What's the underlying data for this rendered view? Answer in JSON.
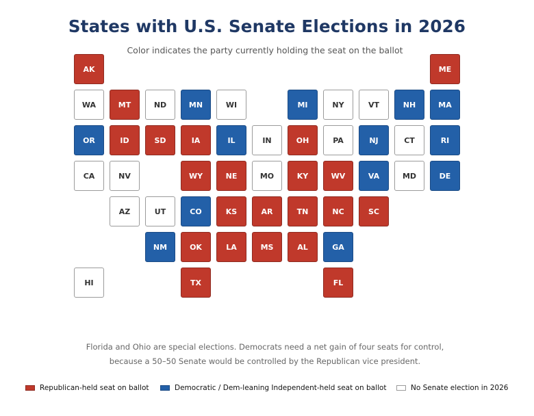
{
  "title": "States with U.S. Senate Elections in 2026",
  "subtitle": "Color indicates the party currently holding the seat on the ballot",
  "colors": {
    "rep": "#c0392b",
    "dem": "#2360a8",
    "none": "#ffffff",
    "title": "#1f3864"
  },
  "states": [
    {
      "abbr": "AK",
      "row": 0,
      "col": 0,
      "status": "rep"
    },
    {
      "abbr": "ME",
      "row": 0,
      "col": 10,
      "status": "rep"
    },
    {
      "abbr": "WA",
      "row": 1,
      "col": 0,
      "status": "none"
    },
    {
      "abbr": "MT",
      "row": 1,
      "col": 1,
      "status": "rep"
    },
    {
      "abbr": "ND",
      "row": 1,
      "col": 2,
      "status": "none"
    },
    {
      "abbr": "MN",
      "row": 1,
      "col": 3,
      "status": "dem"
    },
    {
      "abbr": "WI",
      "row": 1,
      "col": 4,
      "status": "none"
    },
    {
      "abbr": "MI",
      "row": 1,
      "col": 6,
      "status": "dem"
    },
    {
      "abbr": "NY",
      "row": 1,
      "col": 7,
      "status": "none"
    },
    {
      "abbr": "VT",
      "row": 1,
      "col": 8,
      "status": "none"
    },
    {
      "abbr": "NH",
      "row": 1,
      "col": 9,
      "status": "dem"
    },
    {
      "abbr": "MA",
      "row": 1,
      "col": 10,
      "status": "dem"
    },
    {
      "abbr": "OR",
      "row": 2,
      "col": 0,
      "status": "dem"
    },
    {
      "abbr": "ID",
      "row": 2,
      "col": 1,
      "status": "rep"
    },
    {
      "abbr": "SD",
      "row": 2,
      "col": 2,
      "status": "rep"
    },
    {
      "abbr": "IA",
      "row": 2,
      "col": 3,
      "status": "rep"
    },
    {
      "abbr": "IL",
      "row": 2,
      "col": 4,
      "status": "dem"
    },
    {
      "abbr": "IN",
      "row": 2,
      "col": 5,
      "status": "none"
    },
    {
      "abbr": "OH",
      "row": 2,
      "col": 6,
      "status": "rep"
    },
    {
      "abbr": "PA",
      "row": 2,
      "col": 7,
      "status": "none"
    },
    {
      "abbr": "NJ",
      "row": 2,
      "col": 8,
      "status": "dem"
    },
    {
      "abbr": "CT",
      "row": 2,
      "col": 9,
      "status": "none"
    },
    {
      "abbr": "RI",
      "row": 2,
      "col": 10,
      "status": "dem"
    },
    {
      "abbr": "CA",
      "row": 3,
      "col": 0,
      "status": "none"
    },
    {
      "abbr": "NV",
      "row": 3,
      "col": 1,
      "status": "none"
    },
    {
      "abbr": "WY",
      "row": 3,
      "col": 3,
      "status": "rep"
    },
    {
      "abbr": "NE",
      "row": 3,
      "col": 4,
      "status": "rep"
    },
    {
      "abbr": "MO",
      "row": 3,
      "col": 5,
      "status": "none"
    },
    {
      "abbr": "KY",
      "row": 3,
      "col": 6,
      "status": "rep"
    },
    {
      "abbr": "WV",
      "row": 3,
      "col": 7,
      "status": "rep"
    },
    {
      "abbr": "VA",
      "row": 3,
      "col": 8,
      "status": "dem"
    },
    {
      "abbr": "MD",
      "row": 3,
      "col": 9,
      "status": "none"
    },
    {
      "abbr": "DE",
      "row": 3,
      "col": 10,
      "status": "dem"
    },
    {
      "abbr": "AZ",
      "row": 4,
      "col": 1,
      "status": "none"
    },
    {
      "abbr": "UT",
      "row": 4,
      "col": 2,
      "status": "none"
    },
    {
      "abbr": "CO",
      "row": 4,
      "col": 3,
      "status": "dem"
    },
    {
      "abbr": "KS",
      "row": 4,
      "col": 4,
      "status": "rep"
    },
    {
      "abbr": "AR",
      "row": 4,
      "col": 5,
      "status": "rep"
    },
    {
      "abbr": "TN",
      "row": 4,
      "col": 6,
      "status": "rep"
    },
    {
      "abbr": "NC",
      "row": 4,
      "col": 7,
      "status": "rep"
    },
    {
      "abbr": "SC",
      "row": 4,
      "col": 8,
      "status": "rep"
    },
    {
      "abbr": "NM",
      "row": 5,
      "col": 2,
      "status": "dem"
    },
    {
      "abbr": "OK",
      "row": 5,
      "col": 3,
      "status": "rep"
    },
    {
      "abbr": "LA",
      "row": 5,
      "col": 4,
      "status": "rep"
    },
    {
      "abbr": "MS",
      "row": 5,
      "col": 5,
      "status": "rep"
    },
    {
      "abbr": "AL",
      "row": 5,
      "col": 6,
      "status": "rep"
    },
    {
      "abbr": "GA",
      "row": 5,
      "col": 7,
      "status": "dem"
    },
    {
      "abbr": "HI",
      "row": 6,
      "col": 0,
      "status": "none"
    },
    {
      "abbr": "TX",
      "row": 6,
      "col": 3,
      "status": "rep"
    },
    {
      "abbr": "FL",
      "row": 6,
      "col": 7,
      "status": "rep"
    }
  ],
  "note": {
    "line1": "Florida and Ohio are special elections. Democrats need a net gain of four seats for control,",
    "line2": "because a 50–50 Senate would be controlled by the Republican vice president."
  },
  "legend": [
    {
      "status": "rep",
      "label": "Republican-held seat on ballot"
    },
    {
      "status": "dem",
      "label": "Democratic / Dem-leaning Independent-held seat on ballot"
    },
    {
      "status": "none",
      "label": "No Senate election in 2026"
    }
  ]
}
